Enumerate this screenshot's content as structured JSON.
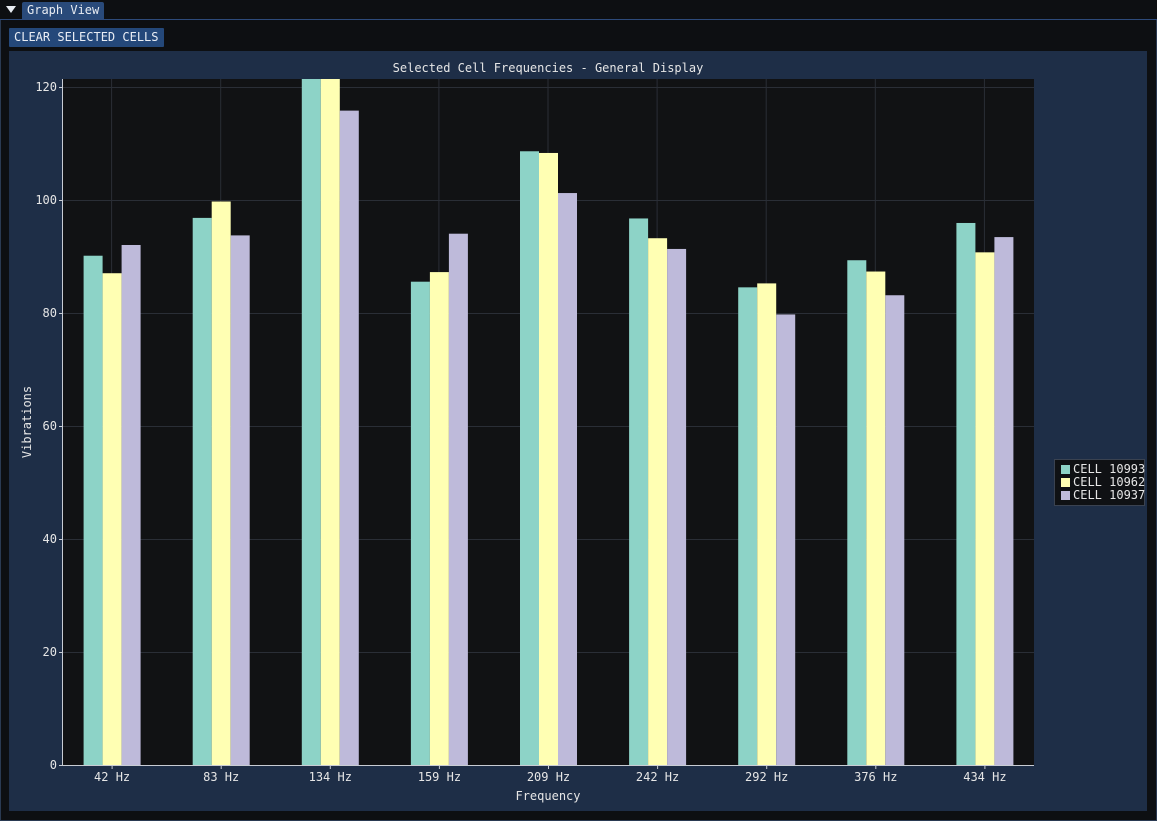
{
  "window": {
    "title": "Graph View"
  },
  "toolbar": {
    "clear_label": "CLEAR SELECTED CELLS"
  },
  "colors": {
    "background": "#0d0f12",
    "plot_frame": "#1e2e47",
    "plot_area": "#111214",
    "grid": "#2a2e36",
    "text": "#e6e6e6",
    "accent": "#294a7a"
  },
  "chart_data": {
    "type": "bar",
    "title": "Selected Cell Frequencies - General Display",
    "xlabel": "Frequency",
    "ylabel": "Vibrations",
    "ylim": [
      0,
      121.5
    ],
    "yticks": [
      0,
      20,
      40,
      60,
      80,
      100,
      120
    ],
    "grid": true,
    "legend_position": "right",
    "categories": [
      "42 Hz",
      "83 Hz",
      "134 Hz",
      "159 Hz",
      "209 Hz",
      "242 Hz",
      "292 Hz",
      "376 Hz",
      "434 Hz"
    ],
    "series": [
      {
        "name": "CELL 10993",
        "color": "#8dd3c7",
        "values": [
          90.2,
          96.9,
          122,
          85.6,
          108.7,
          96.8,
          84.6,
          89.4,
          96
        ]
      },
      {
        "name": "CELL 10962",
        "color": "#ffffb3",
        "values": [
          87.1,
          99.8,
          122,
          87.3,
          108.4,
          93.3,
          85.3,
          87.4,
          90.8
        ]
      },
      {
        "name": "CELL 10937",
        "color": "#bebada",
        "values": [
          92.1,
          93.8,
          115.9,
          94.1,
          101.3,
          91.4,
          79.8,
          83.2,
          93.5
        ]
      }
    ]
  }
}
